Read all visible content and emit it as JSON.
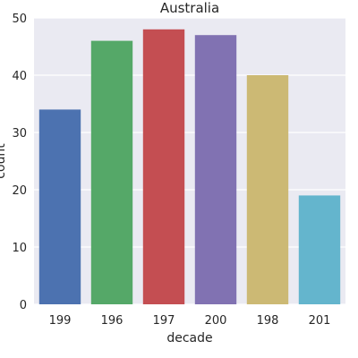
{
  "chart_data": {
    "type": "bar",
    "title": "Australia",
    "xlabel": "decade",
    "ylabel": "count",
    "categories": [
      "199",
      "196",
      "197",
      "200",
      "198",
      "201"
    ],
    "values": [
      34,
      46,
      48,
      47,
      40,
      19
    ],
    "colors": [
      "#4c72b0",
      "#55a868",
      "#c44e52",
      "#8172b2",
      "#ccb974",
      "#64b5cd"
    ],
    "ylim": [
      0,
      50
    ],
    "yticks": [
      0,
      10,
      20,
      30,
      40,
      50
    ],
    "grid": true,
    "background": "#eaeaf2"
  }
}
